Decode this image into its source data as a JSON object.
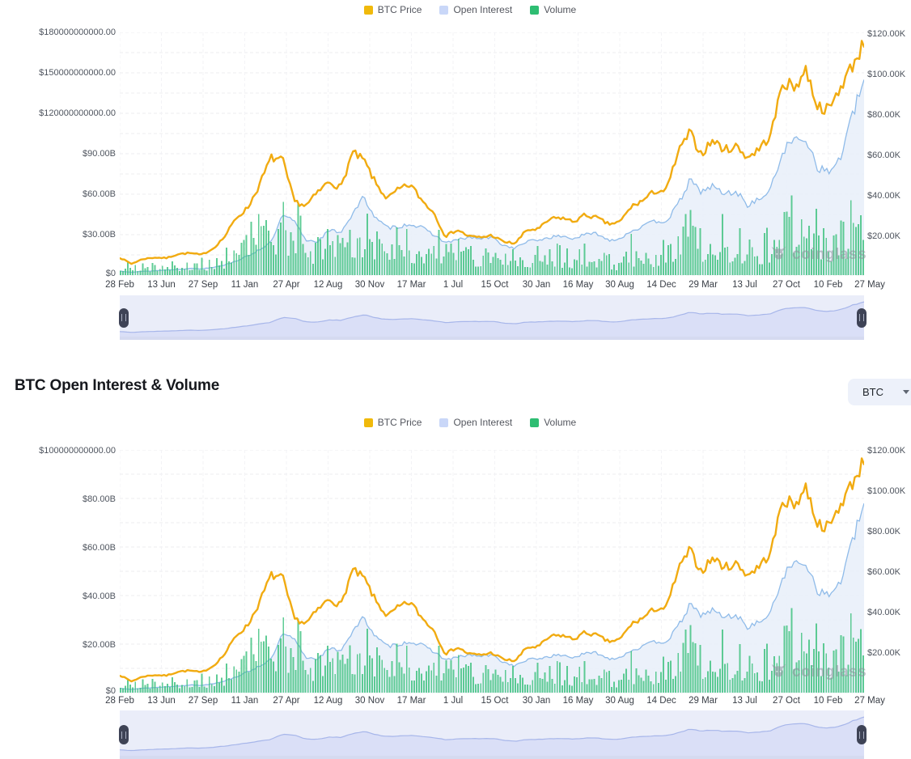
{
  "legend": {
    "items": [
      {
        "label": "BTC Price"
      },
      {
        "label": "Open Interest"
      },
      {
        "label": "Volume"
      }
    ]
  },
  "section": {
    "title": "BTC Open Interest & Volume",
    "coin_selector_value": "BTC"
  },
  "watermark_text": "coinglass",
  "colors": {
    "legend_swatches": [
      "#F0B90B",
      "#C9D7F8",
      "#2EBD72"
    ],
    "price_line": "#F1AB11",
    "oi_line": "#8FBBE9",
    "oi_fill": "#E7EEF9",
    "volume_bar": "#3CC17E",
    "nav_bg": "#EAEDF9",
    "nav_fill": "#DADFF7",
    "nav_line": "#A7B6EA",
    "nav_strip": "#D5DAF0",
    "handle": "#3E4356",
    "grid": "#EDEDEF"
  },
  "chart_data": [
    {
      "type": "line",
      "title": "",
      "x_tick_labels": [
        "28 Feb",
        "13 Jun",
        "27 Sep",
        "11 Jan",
        "27 Apr",
        "12 Aug",
        "30 Nov",
        "17 Mar",
        "1 Jul",
        "15 Oct",
        "30 Jan",
        "16 May",
        "30 Aug",
        "14 Dec",
        "29 Mar",
        "13 Jul",
        "27 Oct",
        "10 Feb",
        "27 May"
      ],
      "months": [
        "2020-02",
        "2020-03",
        "2020-04",
        "2020-05",
        "2020-06",
        "2020-07",
        "2020-08",
        "2020-09",
        "2020-10",
        "2020-11",
        "2020-12",
        "2021-01",
        "2021-02",
        "2021-03",
        "2021-04",
        "2021-05",
        "2021-06",
        "2021-07",
        "2021-08",
        "2021-09",
        "2021-10",
        "2021-11",
        "2021-12",
        "2022-01",
        "2022-02",
        "2022-03",
        "2022-04",
        "2022-05",
        "2022-06",
        "2022-07",
        "2022-08",
        "2022-09",
        "2022-10",
        "2022-11",
        "2022-12",
        "2023-01",
        "2023-02",
        "2023-03",
        "2023-04",
        "2023-05",
        "2023-06",
        "2023-07",
        "2023-08",
        "2023-09",
        "2023-10",
        "2023-11",
        "2023-12",
        "2024-01",
        "2024-02",
        "2024-03",
        "2024-04",
        "2024-05",
        "2024-06",
        "2024-07",
        "2024-08",
        "2024-09",
        "2024-10",
        "2024-11",
        "2024-12",
        "2025-01",
        "2025-02",
        "2025-03",
        "2025-04",
        "2025-05",
        "2025-06"
      ],
      "left_axis": {
        "labels": [
          "$180000000000.00",
          "$150000000000.00",
          "$120000000000.00",
          "$90.00B",
          "$60.00B",
          "$30.00B",
          "$0"
        ],
        "unit": "USD",
        "range_billions": [
          0,
          180
        ]
      },
      "right_axis": {
        "labels": [
          "$120.00K",
          "$100.00K",
          "$80.00K",
          "$60.00K",
          "$40.00K",
          "$20.00K"
        ],
        "unit": "USD",
        "range_thousands": [
          0,
          120
        ]
      },
      "series": [
        {
          "name": "BTC Price",
          "kind": "line",
          "axis": "right",
          "unit": "thousand USD",
          "values": [
            9.5,
            6.4,
            8.8,
            9.5,
            9.2,
            11.2,
            11.7,
            10.8,
            13.8,
            19.6,
            29,
            34,
            45.2,
            58.8,
            57.7,
            37.3,
            35,
            41.5,
            47.2,
            43.8,
            61.3,
            57.5,
            46.2,
            38.5,
            43.2,
            45.5,
            37.6,
            31.8,
            19.9,
            23.3,
            20,
            19.4,
            20.5,
            17.2,
            16.5,
            23.1,
            23.5,
            28.5,
            29.2,
            27.2,
            30.5,
            29.2,
            26,
            27,
            34.7,
            37.7,
            42.3,
            42.6,
            61.2,
            71.3,
            60.6,
            67.5,
            62.7,
            64.6,
            59,
            63.3,
            70.2,
            96.4,
            93.4,
            102.4,
            84.3,
            82.5,
            94.2,
            104.6,
            115.5
          ]
        },
        {
          "name": "Open Interest",
          "kind": "area",
          "axis": "left",
          "unit": "billion USD",
          "values": [
            3,
            2.2,
            2.8,
            3.2,
            3.8,
            4.2,
            5,
            4.6,
            5.8,
            7.5,
            10.5,
            14,
            19,
            24,
            44,
            40,
            26,
            25,
            33,
            32,
            45,
            58,
            42,
            35,
            36,
            38,
            35,
            30,
            24,
            26,
            28,
            27,
            28,
            22,
            20,
            25,
            26,
            28,
            29,
            27,
            30,
            31,
            26,
            27,
            33,
            36,
            40,
            40,
            52,
            70,
            62,
            66,
            60,
            62,
            52,
            56,
            64,
            92,
            100,
            102,
            80,
            76,
            88,
            118,
            145
          ]
        },
        {
          "name": "Volume",
          "kind": "bar",
          "axis": "left",
          "unit": "billion USD",
          "values": [
            6,
            10,
            8,
            9,
            8,
            9,
            12,
            10,
            11,
            16,
            22,
            35,
            38,
            40,
            42,
            45,
            30,
            26,
            30,
            30,
            36,
            40,
            33,
            28,
            30,
            30,
            26,
            28,
            26,
            20,
            22,
            20,
            20,
            24,
            16,
            16,
            20,
            22,
            18,
            16,
            18,
            14,
            13,
            12,
            16,
            20,
            20,
            22,
            30,
            40,
            32,
            28,
            26,
            26,
            28,
            24,
            28,
            48,
            44,
            40,
            38,
            32,
            36,
            46,
            44
          ]
        }
      ],
      "navigator": {
        "selected_range": "full",
        "handles": [
          "left",
          "right"
        ]
      }
    },
    {
      "type": "line",
      "title": "BTC Open Interest & Volume",
      "x_tick_labels": [
        "28 Feb",
        "13 Jun",
        "27 Sep",
        "11 Jan",
        "27 Apr",
        "12 Aug",
        "30 Nov",
        "17 Mar",
        "1 Jul",
        "15 Oct",
        "30 Jan",
        "16 May",
        "30 Aug",
        "14 Dec",
        "29 Mar",
        "13 Jul",
        "27 Oct",
        "10 Feb",
        "27 May"
      ],
      "months": [
        "2020-02",
        "2020-03",
        "2020-04",
        "2020-05",
        "2020-06",
        "2020-07",
        "2020-08",
        "2020-09",
        "2020-10",
        "2020-11",
        "2020-12",
        "2021-01",
        "2021-02",
        "2021-03",
        "2021-04",
        "2021-05",
        "2021-06",
        "2021-07",
        "2021-08",
        "2021-09",
        "2021-10",
        "2021-11",
        "2021-12",
        "2022-01",
        "2022-02",
        "2022-03",
        "2022-04",
        "2022-05",
        "2022-06",
        "2022-07",
        "2022-08",
        "2022-09",
        "2022-10",
        "2022-11",
        "2022-12",
        "2023-01",
        "2023-02",
        "2023-03",
        "2023-04",
        "2023-05",
        "2023-06",
        "2023-07",
        "2023-08",
        "2023-09",
        "2023-10",
        "2023-11",
        "2023-12",
        "2024-01",
        "2024-02",
        "2024-03",
        "2024-04",
        "2024-05",
        "2024-06",
        "2024-07",
        "2024-08",
        "2024-09",
        "2024-10",
        "2024-11",
        "2024-12",
        "2025-01",
        "2025-02",
        "2025-03",
        "2025-04",
        "2025-05",
        "2025-06"
      ],
      "left_axis": {
        "labels": [
          "$100000000000.00",
          "$80.00B",
          "$60.00B",
          "$40.00B",
          "$20.00B",
          "$0"
        ],
        "unit": "USD",
        "range_billions": [
          0,
          100
        ]
      },
      "right_axis": {
        "labels": [
          "$120.00K",
          "$100.00K",
          "$80.00K",
          "$60.00K",
          "$40.00K",
          "$20.00K"
        ],
        "unit": "USD",
        "range_thousands": [
          0,
          120
        ]
      },
      "series": [
        {
          "name": "BTC Price",
          "kind": "line",
          "axis": "right",
          "unit": "thousand USD",
          "values": [
            9.5,
            6.4,
            8.8,
            9.5,
            9.2,
            11.2,
            11.7,
            10.8,
            13.8,
            19.6,
            29,
            34,
            45.2,
            58.8,
            57.7,
            37.3,
            35,
            41.5,
            47.2,
            43.8,
            61.3,
            57.5,
            46.2,
            38.5,
            43.2,
            45.5,
            37.6,
            31.8,
            19.9,
            23.3,
            20,
            19.4,
            20.5,
            17.2,
            16.5,
            23.1,
            23.5,
            28.5,
            29.2,
            27.2,
            30.5,
            29.2,
            26,
            27,
            34.7,
            37.7,
            42.3,
            42.6,
            61.2,
            71.3,
            60.6,
            67.5,
            62.7,
            64.6,
            59,
            63.3,
            70.2,
            96.4,
            93.4,
            102.4,
            84.3,
            82.5,
            94.2,
            104.6,
            115.5
          ]
        },
        {
          "name": "Open Interest",
          "kind": "area",
          "axis": "left",
          "unit": "billion USD",
          "values": [
            1.8,
            1.4,
            1.8,
            2.1,
            2.4,
            2.7,
            3.2,
            3,
            3.7,
            4.8,
            6.5,
            8.5,
            11,
            13.5,
            24,
            22,
            14.5,
            14,
            18,
            17.5,
            25,
            31,
            23,
            19,
            20,
            21,
            19.5,
            17,
            13.5,
            14.5,
            15.5,
            15,
            15.5,
            12.5,
            11,
            13.5,
            14,
            15,
            15.5,
            14.5,
            16,
            16.5,
            14,
            14.5,
            17.5,
            19,
            21,
            21,
            27,
            36,
            32,
            34,
            31,
            32,
            27,
            29,
            33,
            48,
            53,
            54,
            42,
            40,
            46,
            62,
            78
          ]
        },
        {
          "name": "Volume",
          "kind": "bar",
          "axis": "left",
          "unit": "billion USD",
          "values": [
            3.5,
            6,
            5,
            5.5,
            5,
            5.5,
            7,
            6,
            6.5,
            9.5,
            13,
            20,
            22,
            23,
            24,
            26,
            17,
            15,
            17,
            17,
            21,
            23,
            19,
            16,
            17,
            17,
            15,
            16,
            15,
            11.5,
            12.5,
            11.5,
            11.5,
            14,
            9,
            9,
            11.5,
            12.5,
            10,
            9,
            10,
            8,
            7.5,
            7,
            9,
            11.5,
            11.5,
            12.5,
            17,
            23,
            18,
            16,
            15,
            15,
            16,
            14,
            16,
            28,
            26,
            24,
            22,
            19,
            21,
            27,
            26
          ]
        }
      ],
      "navigator": {
        "selected_range": "full",
        "handles": [
          "left",
          "right"
        ]
      }
    }
  ]
}
